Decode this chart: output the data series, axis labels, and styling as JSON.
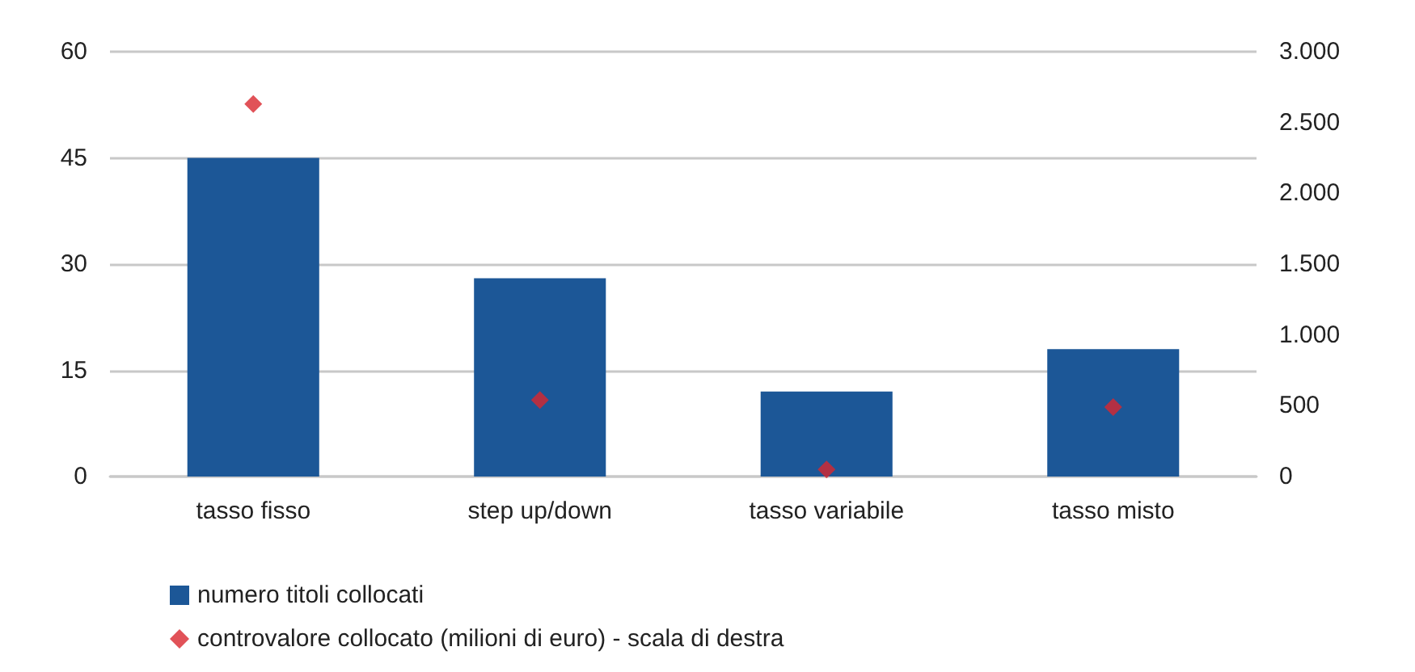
{
  "chart_data": {
    "type": "bar",
    "categories": [
      "tasso fisso",
      "step up/down",
      "tasso variabile",
      "tasso misto"
    ],
    "series": [
      {
        "name": "numero titoli collocati",
        "color": "#1c5797",
        "values": [
          45,
          28,
          12,
          18
        ]
      },
      {
        "name": "controvalore collocato (milioni di euro) - scala di destra",
        "type": "scatter",
        "axis": "y2",
        "color": "#d9272e",
        "values": [
          2630,
          540,
          50,
          490
        ]
      }
    ],
    "ylim": [
      0,
      60
    ],
    "yticks": [
      0,
      15,
      30,
      45,
      60
    ],
    "y2lim": [
      0,
      3000
    ],
    "y2ticks": [
      0,
      500,
      {
        "value": 1000,
        "label": "1.000"
      },
      {
        "value": 1500,
        "label": "1.500"
      },
      {
        "value": 2000,
        "label": "2.000"
      },
      {
        "value": 2500,
        "label": "2.500"
      },
      {
        "value": 3000,
        "label": "3.000"
      }
    ],
    "grid": "y",
    "legend": "bottom left",
    "marker": "diamond"
  }
}
